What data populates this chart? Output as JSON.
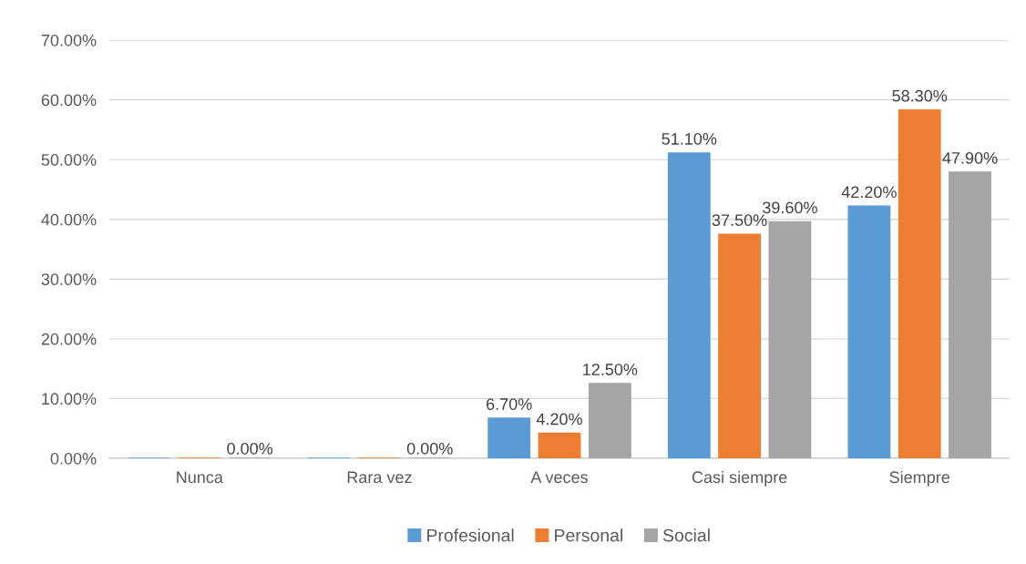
{
  "chart_data": {
    "type": "bar",
    "categories": [
      "Nunca",
      "Rara vez",
      "A veces",
      "Casi siempre",
      "Siempre"
    ],
    "series": [
      {
        "name": "Profesional",
        "color": "#5b9bd5",
        "values": [
          0,
          0,
          6.7,
          51.1,
          42.2
        ],
        "value_labels": [
          null,
          null,
          "6.70%",
          "51.10%",
          "42.20%"
        ]
      },
      {
        "name": "Personal",
        "color": "#ed7d31",
        "values": [
          0,
          0,
          4.2,
          37.5,
          58.3
        ],
        "value_labels": [
          null,
          null,
          "4.20%",
          "37.50%",
          "58.30%"
        ]
      },
      {
        "name": "Social",
        "color": "#a5a5a5",
        "values": [
          0,
          0,
          12.5,
          39.6,
          47.9
        ],
        "value_labels": [
          "0.00%",
          "0.00%",
          "12.50%",
          "39.60%",
          "47.90%"
        ]
      }
    ],
    "ylim": [
      0,
      70
    ],
    "yticks": [
      {
        "value": 0,
        "label": "0.00%"
      },
      {
        "value": 10,
        "label": "10.00%"
      },
      {
        "value": 20,
        "label": "20.00%"
      },
      {
        "value": 30,
        "label": "30.00%"
      },
      {
        "value": 40,
        "label": "40.00%"
      },
      {
        "value": 50,
        "label": "50.00%"
      },
      {
        "value": 60,
        "label": "60.00%"
      },
      {
        "value": 70,
        "label": "70.00%"
      }
    ],
    "grid": "y",
    "legend": "bottom"
  }
}
